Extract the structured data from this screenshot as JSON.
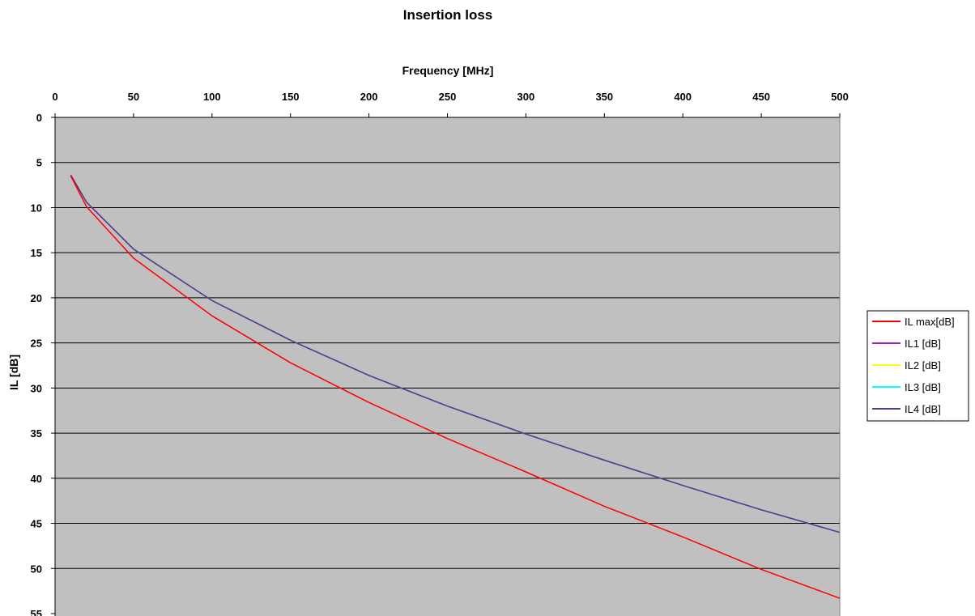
{
  "chart_data": {
    "type": "line",
    "title": "Insertion loss",
    "xlabel": "Frequency [MHz]",
    "ylabel": "IL [dB]",
    "x_axis_position": "top",
    "y_axis_inverted": true,
    "xlim": [
      0,
      500
    ],
    "ylim": [
      0,
      55
    ],
    "x_ticks": [
      "0",
      "50",
      "100",
      "150",
      "200",
      "250",
      "300",
      "350",
      "400",
      "450",
      "500"
    ],
    "y_ticks": [
      "0",
      "5",
      "10",
      "15",
      "20",
      "25",
      "30",
      "35",
      "40",
      "45",
      "50",
      "55"
    ],
    "grid": "horizontal",
    "plot_background": "#c0c0c0",
    "legend_position": "right",
    "x": [
      10,
      20,
      50,
      100,
      150,
      200,
      250,
      300,
      350,
      400,
      450,
      500
    ],
    "series": [
      {
        "name": "IL max[dB]",
        "color": "#ff0000",
        "values": [
          6.5,
          9.9,
          15.6,
          22.0,
          27.2,
          31.6,
          35.6,
          39.3,
          43.1,
          46.5,
          50.1,
          53.3
        ]
      },
      {
        "name": "IL1 [dB]",
        "color": "#a020c0",
        "values": [
          6.4,
          9.4,
          14.6,
          20.3,
          24.7,
          28.6,
          32.0,
          35.1,
          38.0,
          40.8,
          43.5,
          46.0
        ]
      },
      {
        "name": "IL2 [dB]",
        "color": "#ffff00",
        "values": [
          6.4,
          9.4,
          14.6,
          20.3,
          24.7,
          28.6,
          32.0,
          35.1,
          38.0,
          40.8,
          43.5,
          46.0
        ]
      },
      {
        "name": "IL3 [dB]",
        "color": "#00ffff",
        "values": [
          6.4,
          9.4,
          14.6,
          20.3,
          24.7,
          28.6,
          32.0,
          35.1,
          38.0,
          40.8,
          43.5,
          46.0
        ]
      },
      {
        "name": "IL4 [dB]",
        "color": "#5a3a8c",
        "values": [
          6.4,
          9.4,
          14.6,
          20.3,
          24.7,
          28.6,
          32.0,
          35.1,
          38.0,
          40.8,
          43.5,
          46.0
        ]
      }
    ]
  }
}
